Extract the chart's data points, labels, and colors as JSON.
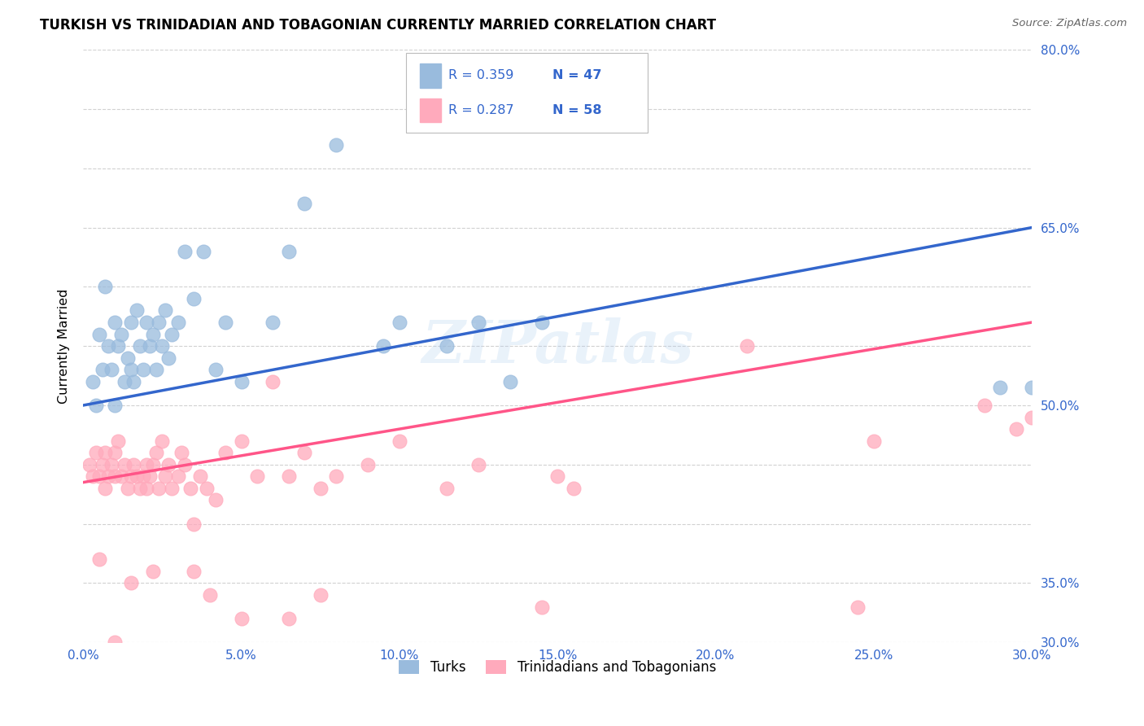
{
  "title": "TURKISH VS TRINIDADIAN AND TOBAGONIAN CURRENTLY MARRIED CORRELATION CHART",
  "source": "Source: ZipAtlas.com",
  "ylabel_label": "Currently Married",
  "blue_color": "#99BBDD",
  "pink_color": "#FFAABC",
  "line_blue": "#3366CC",
  "line_pink": "#FF5588",
  "text_blue": "#3366CC",
  "legend_r_blue": "R = 0.359",
  "legend_n_blue": "N = 47",
  "legend_r_pink": "R = 0.287",
  "legend_n_pink": "N = 58",
  "legend_label_blue": "Turks",
  "legend_label_pink": "Trinidadians and Tobagonians",
  "watermark": "ZIPatlas",
  "xmin": 0.0,
  "xmax": 30.0,
  "ymin": 30.0,
  "ymax": 80.0,
  "xticks": [
    0.0,
    5.0,
    10.0,
    15.0,
    20.0,
    25.0,
    30.0
  ],
  "yticks": [
    30.0,
    35.0,
    40.0,
    45.0,
    50.0,
    55.0,
    60.0,
    65.0,
    70.0,
    75.0,
    80.0
  ],
  "blue_line_x0": 0.0,
  "blue_line_y0": 50.0,
  "blue_line_x1": 30.0,
  "blue_line_y1": 65.0,
  "pink_line_x0": 0.0,
  "pink_line_y0": 43.5,
  "pink_line_x1": 30.0,
  "pink_line_y1": 57.0,
  "turks_x": [
    0.3,
    0.4,
    0.5,
    0.6,
    0.7,
    0.8,
    0.9,
    1.0,
    1.0,
    1.1,
    1.2,
    1.3,
    1.4,
    1.5,
    1.5,
    1.6,
    1.7,
    1.8,
    1.9,
    2.0,
    2.1,
    2.2,
    2.3,
    2.4,
    2.5,
    2.6,
    2.7,
    2.8,
    3.0,
    3.2,
    3.5,
    3.8,
    4.2,
    4.5,
    5.0,
    6.0,
    6.5,
    7.0,
    8.0,
    9.5,
    10.0,
    11.5,
    12.5,
    13.5,
    14.5,
    29.0,
    30.0
  ],
  "turks_y": [
    52.0,
    50.0,
    56.0,
    53.0,
    60.0,
    55.0,
    53.0,
    57.0,
    50.0,
    55.0,
    56.0,
    52.0,
    54.0,
    53.0,
    57.0,
    52.0,
    58.0,
    55.0,
    53.0,
    57.0,
    55.0,
    56.0,
    53.0,
    57.0,
    55.0,
    58.0,
    54.0,
    56.0,
    57.0,
    63.0,
    59.0,
    63.0,
    53.0,
    57.0,
    52.0,
    57.0,
    63.0,
    67.0,
    72.0,
    55.0,
    57.0,
    55.0,
    57.0,
    52.0,
    57.0,
    51.5,
    51.5
  ],
  "trini_x": [
    0.2,
    0.3,
    0.4,
    0.5,
    0.6,
    0.7,
    0.7,
    0.8,
    0.9,
    1.0,
    1.0,
    1.1,
    1.2,
    1.3,
    1.4,
    1.5,
    1.6,
    1.7,
    1.8,
    1.9,
    2.0,
    2.0,
    2.1,
    2.2,
    2.3,
    2.4,
    2.5,
    2.6,
    2.7,
    2.8,
    3.0,
    3.1,
    3.2,
    3.4,
    3.5,
    3.7,
    3.9,
    4.2,
    4.5,
    5.0,
    5.5,
    6.0,
    6.5,
    7.0,
    7.5,
    8.0,
    9.0,
    10.0,
    11.5,
    12.5,
    15.0,
    15.5,
    21.0,
    24.5,
    25.0,
    28.5,
    29.5,
    30.0
  ],
  "trini_y": [
    45.0,
    44.0,
    46.0,
    44.0,
    45.0,
    43.0,
    46.0,
    44.0,
    45.0,
    44.0,
    46.0,
    47.0,
    44.0,
    45.0,
    43.0,
    44.0,
    45.0,
    44.0,
    43.0,
    44.0,
    45.0,
    43.0,
    44.0,
    45.0,
    46.0,
    43.0,
    47.0,
    44.0,
    45.0,
    43.0,
    44.0,
    46.0,
    45.0,
    43.0,
    40.0,
    44.0,
    43.0,
    42.0,
    46.0,
    47.0,
    44.0,
    52.0,
    44.0,
    46.0,
    43.0,
    44.0,
    45.0,
    47.0,
    43.0,
    45.0,
    44.0,
    43.0,
    55.0,
    33.0,
    47.0,
    50.0,
    48.0,
    49.0
  ],
  "trini_extra_x": [
    0.5,
    1.0,
    1.5,
    2.2,
    3.5,
    4.0,
    5.0,
    6.5,
    7.5,
    14.5
  ],
  "trini_extra_y": [
    37.0,
    30.0,
    35.0,
    36.0,
    36.0,
    34.0,
    32.0,
    32.0,
    34.0,
    33.0
  ]
}
